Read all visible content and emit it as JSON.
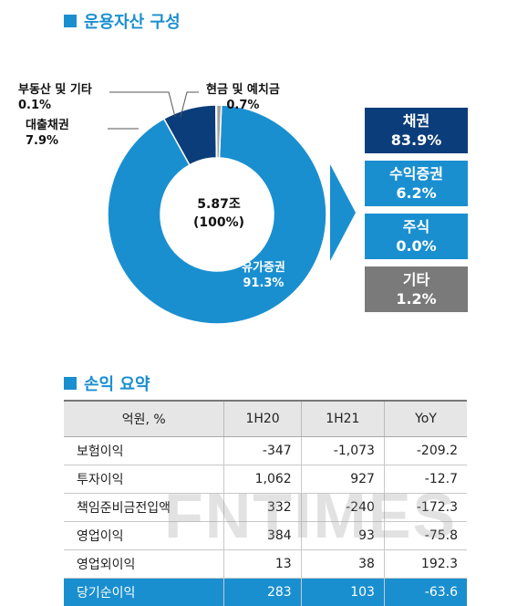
{
  "section1_title": "운용자산 구성",
  "section2_title": "손익 요약",
  "chart_data": {
    "type": "pie",
    "center_label": {
      "line1": "5.87조",
      "line2": "(100%)"
    },
    "slices": [
      {
        "name": "유가증권",
        "pct_label": "91.3%",
        "value": 91.3,
        "color": "#1a8fd0"
      },
      {
        "name": "대출채권",
        "pct_label": "7.9%",
        "value": 7.9,
        "color": "#0b3d7a"
      },
      {
        "name": "부동산  및 기타",
        "pct_label": "0.1%",
        "value": 0.1,
        "color": "#6a8fb5"
      },
      {
        "name": "현금 및 예치금",
        "pct_label": "0.7%",
        "value": 0.7,
        "color": "#a0a0a0"
      }
    ],
    "breakdown": [
      {
        "name": "채권",
        "pct": "83.9%",
        "color": "#0b3d7a"
      },
      {
        "name": "수익증권",
        "pct": "6.2%",
        "color": "#1a8fd0"
      },
      {
        "name": "주식",
        "pct": "0.0%",
        "color": "#1a8fd0"
      },
      {
        "name": "기타",
        "pct": "1.2%",
        "color": "#7a7a7a"
      }
    ]
  },
  "table": {
    "headers": [
      "억원, %",
      "1H20",
      "1H21",
      "YoY"
    ],
    "rows": [
      [
        "보험이익",
        "-347",
        "-1,073",
        "-209.2"
      ],
      [
        "투자이익",
        "1,062",
        "927",
        "-12.7"
      ],
      [
        "책임준비금전입액",
        "332",
        "-240",
        "-172.3"
      ],
      [
        "영업이익",
        "384",
        "93",
        "-75.8"
      ],
      [
        "영업외이익",
        "13",
        "38",
        "192.3"
      ],
      [
        "당기순이익",
        "283",
        "103",
        "-63.6"
      ]
    ]
  },
  "watermark": "FNTIMES"
}
